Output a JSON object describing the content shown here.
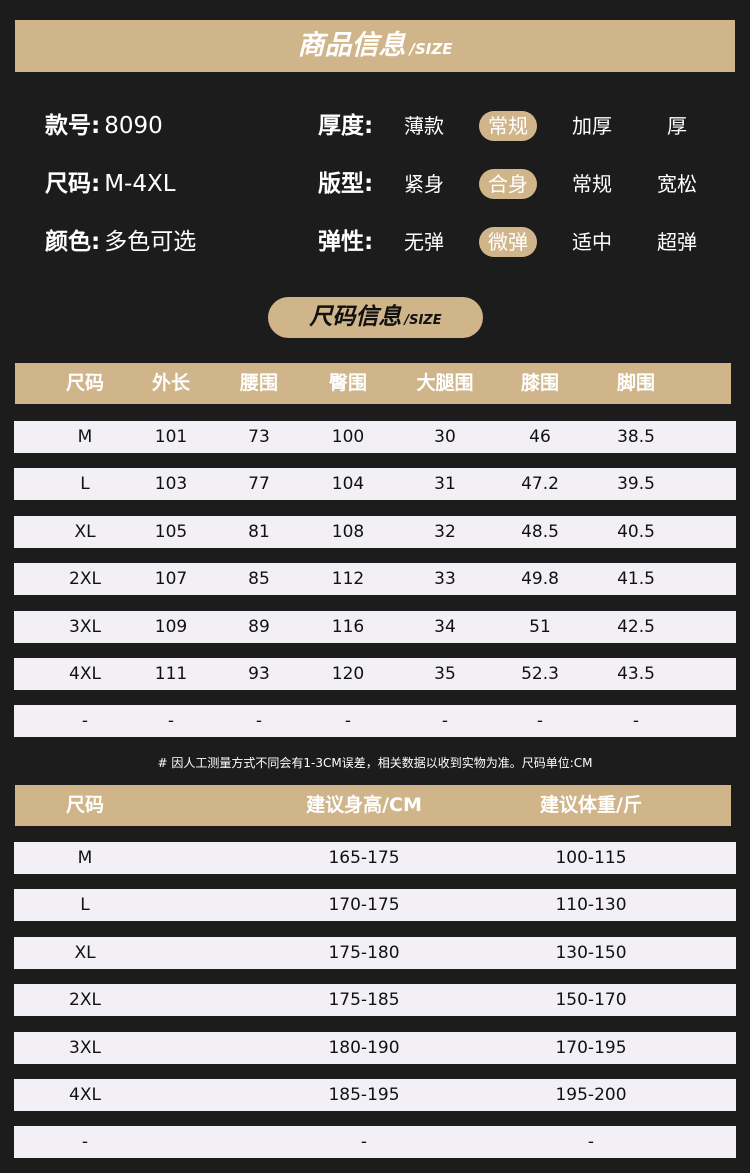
{
  "title": {
    "main": "商品信息",
    "sub": "/SIZE"
  },
  "info_left": [
    {
      "label": "款号:",
      "value": "8090"
    },
    {
      "label": "尺码:",
      "value": "M-4XL"
    },
    {
      "label": "颜色:",
      "value": "多色可选"
    }
  ],
  "info_right": [
    {
      "label": "厚度:",
      "options": [
        "薄款",
        "常规",
        "加厚",
        "厚"
      ],
      "selected": 1
    },
    {
      "label": "版型:",
      "options": [
        "紧身",
        "合身",
        "常规",
        "宽松"
      ],
      "selected": 1
    },
    {
      "label": "弹性:",
      "options": [
        "无弹",
        "微弹",
        "适中",
        "超弹"
      ],
      "selected": 1
    }
  ],
  "size_pill": {
    "main": "尺码信息",
    "sub": "/SIZE"
  },
  "table1": {
    "headers": [
      "尺码",
      "外长",
      "腰围",
      "臀围",
      "大腿围",
      "膝围",
      "脚围"
    ],
    "rows": [
      [
        "M",
        "101",
        "73",
        "100",
        "30",
        "46",
        "38.5"
      ],
      [
        "L",
        "103",
        "77",
        "104",
        "31",
        "47.2",
        "39.5"
      ],
      [
        "XL",
        "105",
        "81",
        "108",
        "32",
        "48.5",
        "40.5"
      ],
      [
        "2XL",
        "107",
        "85",
        "112",
        "33",
        "49.8",
        "41.5"
      ],
      [
        "3XL",
        "109",
        "89",
        "116",
        "34",
        "51",
        "42.5"
      ],
      [
        "4XL",
        "111",
        "93",
        "120",
        "35",
        "52.3",
        "43.5"
      ],
      [
        "-",
        "-",
        "-",
        "-",
        "-",
        "-",
        "-"
      ]
    ]
  },
  "note": "# 因人工测量方式不同会有1-3CM误差，相关数据以收到实物为准。尺码单位:CM",
  "table2": {
    "headers": [
      "尺码",
      "建议身高/CM",
      "建议体重/斤"
    ],
    "rows": [
      [
        "M",
        "165-175",
        "100-115"
      ],
      [
        "L",
        "170-175",
        "110-130"
      ],
      [
        "XL",
        "175-180",
        "130-150"
      ],
      [
        "2XL",
        "175-185",
        "150-170"
      ],
      [
        "3XL",
        "180-190",
        "170-195"
      ],
      [
        "4XL",
        "185-195",
        "195-200"
      ],
      [
        "-",
        "-",
        "-"
      ]
    ]
  },
  "colors": {
    "background": "#1c1c1c",
    "gold": "#d0b48a",
    "row": "#f2f0f4"
  }
}
